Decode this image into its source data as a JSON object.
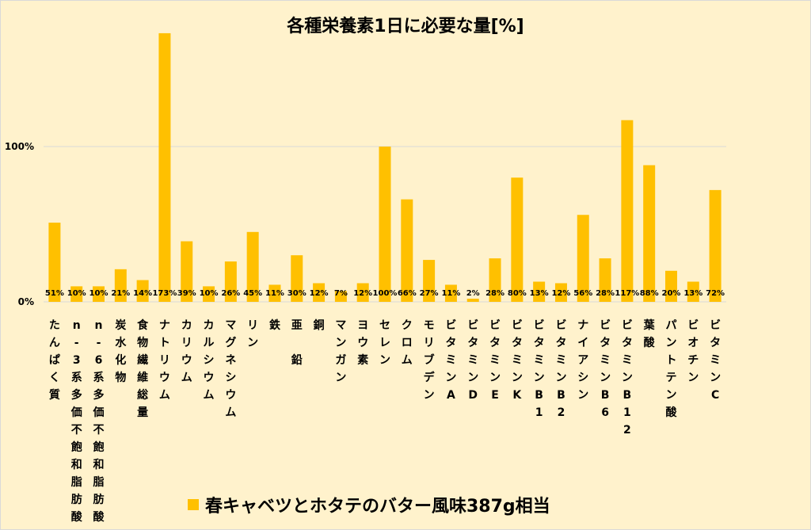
{
  "chart_data": {
    "type": "bar",
    "title": "各種栄養素1日に必要な量[%]",
    "categories": [
      "たんぱく質",
      "n-3系多価不飽和脂肪酸",
      "n-6系多価不飽和脂肪酸",
      "炭水化物",
      "食物繊維総量",
      "ナトリウム",
      "カリウム",
      "カルシウム",
      "マグネシウム",
      "リン",
      "鉄",
      "亜　鉛",
      "銅",
      "マンガン",
      "ヨウ素",
      "セレン",
      "クロム",
      "モリブデン",
      "ビタミンA",
      "ビタミンD",
      "ビタミンE",
      "ビタミンK",
      "ビタミンB1",
      "ビタミンB2",
      "ナイアシン",
      "ビタミンB6",
      "ビタミンB12",
      "葉酸",
      "パントテン酸",
      "ビオチン",
      "ビタミンC"
    ],
    "series": [
      {
        "name": "春キャベツとホタテのバター風味387g相当",
        "values": [
          51,
          10,
          10,
          21,
          14,
          173,
          39,
          10,
          26,
          45,
          11,
          30,
          12,
          7,
          12,
          100,
          66,
          27,
          11,
          2,
          28,
          80,
          13,
          12,
          56,
          28,
          117,
          88,
          20,
          13,
          72
        ],
        "labels": [
          "51%",
          "10%",
          "10%",
          "21%",
          "14%",
          "173%",
          "39%",
          "10%",
          "26%",
          "45%",
          "11%",
          "30%",
          "12%",
          "7%",
          "12%",
          "100%",
          "66%",
          "27%",
          "11%",
          "2%",
          "28%",
          "80%",
          "13%",
          "12%",
          "56%",
          "28%",
          "117%",
          "88%",
          "20%",
          "13%",
          "72%"
        ]
      }
    ],
    "yticks": [
      {
        "value": 0,
        "label": "0%"
      },
      {
        "value": 100,
        "label": "100%"
      }
    ],
    "ylim": [
      0,
      200
    ],
    "grid": true,
    "legend_position": "bottom",
    "colors": {
      "bar": "#FFC000",
      "background": "#FFF2CC",
      "grid": "#D9D9D9",
      "text": "#000000"
    }
  }
}
